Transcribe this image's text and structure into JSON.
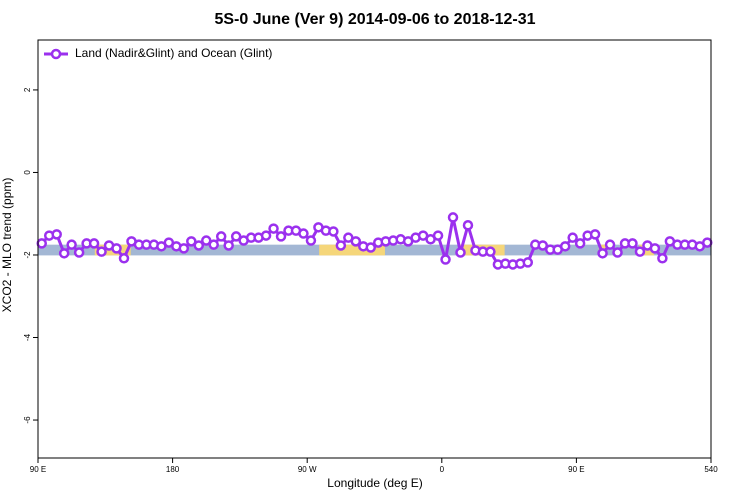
{
  "chart_data": {
    "type": "line",
    "title": "5S-0 June (Ver 9)   2014-09-06 to 2018-12-31",
    "xlabel": "Longitude (deg E)",
    "ylabel": "XCO2 - MLO trend (ppm)",
    "xlim": [
      90,
      540
    ],
    "ylim": [
      -6.92,
      3.21
    ],
    "xticks": [
      {
        "value": 90,
        "label": "90 E"
      },
      180,
      {
        "value": 270,
        "label": "90 W"
      },
      {
        "value": 360,
        "label": "0"
      },
      {
        "value": 450,
        "label": "90 E"
      },
      540
    ],
    "yticks": [
      -6,
      -4,
      -2,
      0,
      2
    ],
    "grid": false,
    "legend": "top-left",
    "ocean_band": {
      "ylim": [
        -2.01,
        -1.75
      ],
      "color": "#a3b7d4"
    },
    "land_segments": {
      "color": "#f5d67a",
      "x": [
        [
          128,
          152
        ],
        [
          278,
          322
        ],
        [
          372,
          402
        ],
        [
          465,
          470
        ],
        [
          492,
          502
        ]
      ]
    },
    "x": [
      92.5,
      97.5,
      102.5,
      107.5,
      112.5,
      117.5,
      122.5,
      127.5,
      132.5,
      137.5,
      142.5,
      147.5,
      152.5,
      157.5,
      162.5,
      167.5,
      172.5,
      177.5,
      182.5,
      187.5,
      192.5,
      197.5,
      202.5,
      207.5,
      212.5,
      217.5,
      222.5,
      227.5,
      232.5,
      237.5,
      242.5,
      247.5,
      252.5,
      257.5,
      262.5,
      267.5,
      272.5,
      277.5,
      282.5,
      287.5,
      292.5,
      297.5,
      302.5,
      307.5,
      312.5,
      317.5,
      322.5,
      327.5,
      332.5,
      337.5,
      342.5,
      347.5,
      352.5,
      357.5,
      362.5,
      367.5,
      372.5,
      377.5,
      382.5,
      387.5,
      392.5,
      397.5,
      402.5,
      407.5,
      412.5,
      417.5,
      422.5,
      427.5,
      432.5,
      437.5,
      442.5,
      447.5,
      452.5,
      457.5,
      462.5,
      467.5,
      472.5,
      477.5,
      482.5,
      487.5,
      492.5,
      497.5,
      502.5,
      507.5,
      512.5,
      517.5,
      522.5,
      527.5,
      532.5,
      537.5
    ],
    "series": [
      {
        "name": "Land (Nadir&Glint) and Ocean (Glint)",
        "color": "#9b30ee",
        "values": [
          -1.72,
          -1.53,
          -1.5,
          -1.96,
          -1.75,
          -1.94,
          -1.72,
          -1.72,
          -1.92,
          -1.77,
          -1.84,
          -2.08,
          -1.67,
          -1.75,
          -1.75,
          -1.75,
          -1.79,
          -1.7,
          -1.79,
          -1.84,
          -1.67,
          -1.77,
          -1.65,
          -1.75,
          -1.55,
          -1.77,
          -1.55,
          -1.65,
          -1.58,
          -1.58,
          -1.53,
          -1.36,
          -1.55,
          -1.41,
          -1.41,
          -1.48,
          -1.65,
          -1.33,
          -1.41,
          -1.43,
          -1.77,
          -1.58,
          -1.67,
          -1.79,
          -1.82,
          -1.7,
          -1.67,
          -1.65,
          -1.62,
          -1.67,
          -1.58,
          -1.53,
          -1.62,
          -1.53,
          -2.11,
          -1.09,
          -1.94,
          -1.28,
          -1.89,
          -1.92,
          -1.92,
          -2.23,
          -2.21,
          -2.23,
          -2.21,
          -2.18,
          -1.75,
          -1.77,
          -1.87,
          -1.87,
          -1.79,
          -1.58,
          -1.72,
          -1.53,
          -1.5,
          -1.96,
          -1.75,
          -1.94,
          -1.72,
          -1.72,
          -1.92,
          -1.77,
          -1.84,
          -2.08,
          -1.67,
          -1.75,
          -1.75,
          -1.75,
          -1.79,
          -1.7
        ]
      }
    ]
  }
}
